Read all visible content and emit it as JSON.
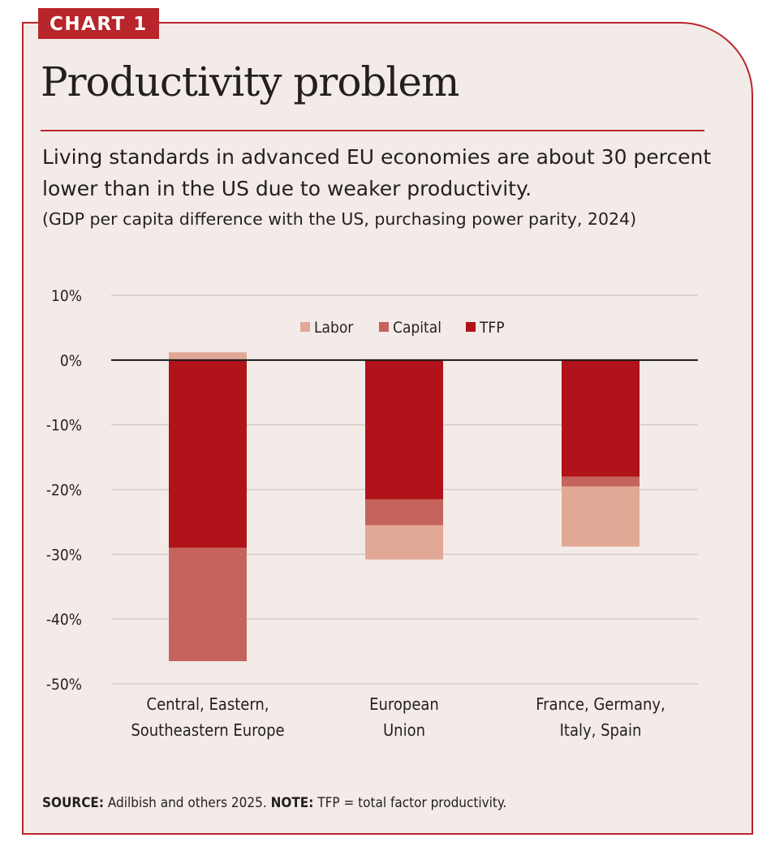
{
  "badge": "CHART 1",
  "title": "Productivity problem",
  "subtitle": "Living standards in advanced EU economies are about 30 percent lower than in the US due to weaker productivity.",
  "caption": "(GDP per capita difference with the US, purchasing power parity, 2024)",
  "footer": {
    "source_label": "SOURCE:",
    "source_text": "Adilbish and others 2025.",
    "note_label": "NOTE:",
    "note_text": "TFP = total factor productivity."
  },
  "colors": {
    "frame": "#b8252b",
    "background": "#f3ebe8",
    "labor": "#e2a896",
    "capital": "#c4645c",
    "tfp": "#b01319"
  },
  "chart_data": {
    "type": "bar",
    "stacked": true,
    "categories": [
      [
        "Central, Eastern,",
        "Southeastern Europe"
      ],
      [
        "European",
        "Union"
      ],
      [
        "France, Germany,",
        "Italy, Spain"
      ]
    ],
    "series": [
      {
        "name": "TFP",
        "key": "tfp",
        "values": [
          -29,
          -21.5,
          -18
        ]
      },
      {
        "name": "Capital",
        "key": "capital",
        "values": [
          -17.5,
          -4,
          -1.5
        ]
      },
      {
        "name": "Labor",
        "key": "labor",
        "values": [
          1.2,
          -5.3,
          -9.3
        ]
      }
    ],
    "legend_order": [
      "Labor",
      "Capital",
      "TFP"
    ],
    "legend_position": "top-center",
    "ylim": [
      -50,
      10
    ],
    "yticks": [
      10,
      0,
      -10,
      -20,
      -30,
      -40,
      -50
    ],
    "ytick_labels": [
      "10%",
      "0%",
      "-10%",
      "-20%",
      "-30%",
      "-40%",
      "-50%"
    ],
    "grid": true
  }
}
